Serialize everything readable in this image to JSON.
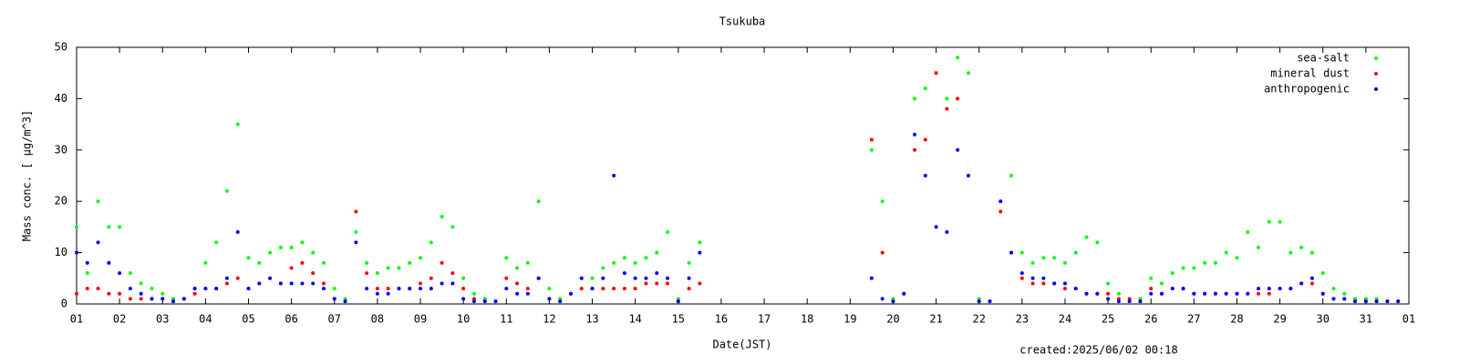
{
  "chart_data": {
    "type": "scatter",
    "title": "Tsukuba",
    "x_label": "Date(JST)",
    "y_label": "Mass conc. [ μg/m^3]",
    "footer": "created:2025/06/02 00:18",
    "legend": "upper right",
    "grid": false,
    "xlim": [
      1,
      32
    ],
    "ylim": [
      0,
      50
    ],
    "yticks": [
      0,
      10,
      20,
      30,
      40,
      50
    ],
    "xticks": [
      {
        "value": 1,
        "label": "01"
      },
      {
        "value": 2,
        "label": "02"
      },
      {
        "value": 3,
        "label": "03"
      },
      {
        "value": 4,
        "label": "04"
      },
      {
        "value": 5,
        "label": "05"
      },
      {
        "value": 6,
        "label": "06"
      },
      {
        "value": 7,
        "label": "07"
      },
      {
        "value": 8,
        "label": "08"
      },
      {
        "value": 9,
        "label": "09"
      },
      {
        "value": 10,
        "label": "10"
      },
      {
        "value": 11,
        "label": "11"
      },
      {
        "value": 12,
        "label": "12"
      },
      {
        "value": 13,
        "label": "13"
      },
      {
        "value": 14,
        "label": "14"
      },
      {
        "value": 15,
        "label": "15"
      },
      {
        "value": 16,
        "label": "16"
      },
      {
        "value": 17,
        "label": "17"
      },
      {
        "value": 18,
        "label": "18"
      },
      {
        "value": 19,
        "label": "19"
      },
      {
        "value": 20,
        "label": "20"
      },
      {
        "value": 21,
        "label": "21"
      },
      {
        "value": 22,
        "label": "22"
      },
      {
        "value": 23,
        "label": "23"
      },
      {
        "value": 24,
        "label": "24"
      },
      {
        "value": 25,
        "label": "25"
      },
      {
        "value": 26,
        "label": "26"
      },
      {
        "value": 27,
        "label": "27"
      },
      {
        "value": 28,
        "label": "28"
      },
      {
        "value": 29,
        "label": "29"
      },
      {
        "value": 30,
        "label": "30"
      },
      {
        "value": 31,
        "label": "31"
      },
      {
        "value": 32,
        "label": "01"
      }
    ],
    "x": [
      1,
      1.25,
      1.5,
      1.75,
      2,
      2.25,
      2.5,
      2.75,
      3,
      3.25,
      3.5,
      3.75,
      4,
      4.25,
      4.5,
      4.75,
      5,
      5.25,
      5.5,
      5.75,
      6,
      6.25,
      6.5,
      6.75,
      7,
      7.25,
      7.5,
      7.75,
      8,
      8.25,
      8.5,
      8.75,
      9,
      9.25,
      9.5,
      9.75,
      10,
      10.25,
      10.5,
      10.75,
      11,
      11.25,
      11.5,
      11.75,
      12,
      12.25,
      12.5,
      12.75,
      13,
      13.25,
      13.5,
      13.75,
      14,
      14.25,
      14.5,
      14.75,
      15,
      15.25,
      15.5,
      15.75,
      16,
      16.25,
      16.5,
      16.75,
      17,
      17.25,
      17.5,
      17.75,
      18,
      18.25,
      18.5,
      18.75,
      19,
      19.25,
      19.5,
      19.75,
      20,
      20.25,
      20.5,
      20.75,
      21,
      21.25,
      21.5,
      21.75,
      22,
      22.25,
      22.5,
      22.75,
      23,
      23.25,
      23.5,
      23.75,
      24,
      24.25,
      24.5,
      24.75,
      25,
      25.25,
      25.5,
      25.75,
      26,
      26.25,
      26.5,
      26.75,
      27,
      27.25,
      27.5,
      27.75,
      28,
      28.25,
      28.5,
      28.75,
      29,
      29.25,
      29.5,
      29.75,
      30,
      30.25,
      30.5,
      30.75,
      31,
      31.25,
      31.5,
      31.75
    ],
    "series": [
      {
        "name": "sea-salt",
        "color": "#00ff00",
        "values": [
          15,
          6,
          20,
          15,
          15,
          6,
          4,
          3,
          2,
          1,
          1,
          3,
          8,
          12,
          22,
          35,
          9,
          8,
          10,
          11,
          11,
          12,
          10,
          8,
          3,
          1,
          14,
          8,
          6,
          7,
          7,
          8,
          9,
          12,
          17,
          15,
          5,
          2,
          1,
          0.5,
          9,
          7,
          8,
          20,
          3,
          1,
          2,
          5,
          5,
          7,
          8,
          9,
          8,
          9,
          10,
          14,
          1,
          8,
          12,
          null,
          null,
          null,
          null,
          null,
          null,
          null,
          null,
          null,
          null,
          null,
          null,
          null,
          null,
          null,
          30,
          20,
          1,
          2,
          40,
          42,
          45,
          40,
          48,
          45,
          1,
          0.5,
          20,
          25,
          10,
          8,
          9,
          9,
          8,
          10,
          13,
          12,
          4,
          2,
          1,
          1,
          5,
          4,
          6,
          7,
          7,
          8,
          8,
          10,
          9,
          14,
          11,
          16,
          16,
          10,
          11,
          10,
          6,
          3,
          2,
          1,
          1,
          1,
          0.5,
          0.5
        ]
      },
      {
        "name": "mineral dust",
        "color": "#ff0000",
        "values": [
          2,
          3,
          3,
          2,
          2,
          1,
          1,
          1,
          1,
          0.5,
          1,
          2,
          3,
          3,
          4,
          5,
          3,
          4,
          5,
          4,
          7,
          8,
          6,
          4,
          1,
          0.5,
          18,
          6,
          3,
          3,
          3,
          3,
          4,
          5,
          8,
          6,
          3,
          1,
          0.5,
          0.5,
          5,
          4,
          3,
          5,
          1,
          0.5,
          2,
          3,
          3,
          3,
          3,
          3,
          3,
          4,
          4,
          4,
          0.5,
          3,
          4,
          null,
          null,
          null,
          null,
          null,
          null,
          null,
          null,
          null,
          null,
          null,
          null,
          null,
          null,
          null,
          32,
          10,
          0.5,
          2,
          30,
          32,
          45,
          38,
          40,
          25,
          0.5,
          0.5,
          18,
          10,
          5,
          4,
          4,
          4,
          3,
          3,
          2,
          2,
          2,
          1,
          1,
          0.5,
          3,
          2,
          3,
          3,
          2,
          2,
          2,
          2,
          2,
          2,
          2,
          2,
          3,
          3,
          4,
          4,
          2,
          1,
          1,
          0.5,
          0.5,
          0.5,
          0.5,
          0.5
        ]
      },
      {
        "name": "anthropogenic",
        "color": "#0000ff",
        "values": [
          10,
          8,
          12,
          8,
          6,
          3,
          2,
          1,
          1,
          0.5,
          1,
          3,
          3,
          3,
          5,
          14,
          3,
          4,
          5,
          4,
          4,
          4,
          4,
          3,
          1,
          0.5,
          12,
          3,
          2,
          2,
          3,
          3,
          3,
          3,
          4,
          4,
          1,
          0.5,
          0.5,
          0.5,
          3,
          2,
          2,
          5,
          1,
          0.5,
          2,
          5,
          3,
          5,
          25,
          6,
          5,
          5,
          6,
          5,
          0.5,
          5,
          10,
          null,
          null,
          null,
          null,
          null,
          null,
          null,
          null,
          null,
          null,
          null,
          null,
          null,
          null,
          null,
          5,
          1,
          0.5,
          2,
          33,
          25,
          15,
          14,
          30,
          25,
          0.5,
          0.5,
          20,
          10,
          6,
          5,
          5,
          4,
          4,
          3,
          2,
          2,
          1,
          0.5,
          0.5,
          0.5,
          2,
          2,
          3,
          3,
          2,
          2,
          2,
          2,
          2,
          2,
          3,
          3,
          3,
          3,
          4,
          5,
          2,
          1,
          1,
          0.5,
          0.5,
          0.5,
          0.5,
          0.5
        ]
      }
    ]
  }
}
